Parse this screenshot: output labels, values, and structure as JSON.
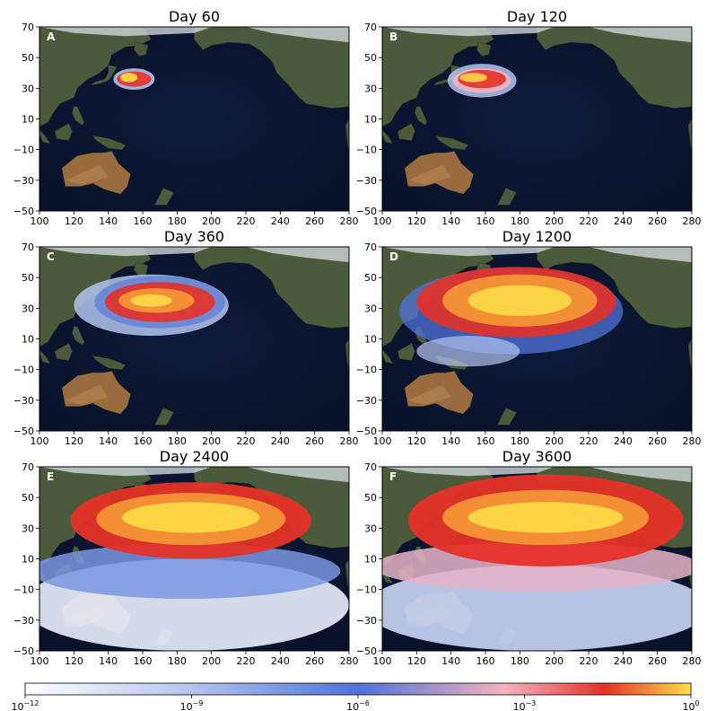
{
  "panels": [
    {
      "letter": "A",
      "title": "Day 60",
      "stage": 0
    },
    {
      "letter": "B",
      "title": "Day 120",
      "stage": 1
    },
    {
      "letter": "C",
      "title": "Day 360",
      "stage": 2
    },
    {
      "letter": "D",
      "title": "Day 1200",
      "stage": 3
    },
    {
      "letter": "E",
      "title": "Day 2400",
      "stage": 4
    },
    {
      "letter": "F",
      "title": "Day 3600",
      "stage": 5
    }
  ],
  "axes": {
    "x_ticks": [
      "100",
      "120",
      "140",
      "160",
      "180",
      "200",
      "220",
      "240",
      "260",
      "280"
    ],
    "y_ticks": [
      "70",
      "50",
      "30",
      "10",
      "−10",
      "−30",
      "−50"
    ],
    "xlim": [
      100,
      280
    ],
    "ylim": [
      -50,
      70
    ]
  },
  "colorbar": {
    "scale": "log",
    "labels": [
      {
        "base": "10",
        "exp": "−12"
      },
      {
        "base": "10",
        "exp": "−9"
      },
      {
        "base": "10",
        "exp": "−6"
      },
      {
        "base": "10",
        "exp": "−3"
      },
      {
        "base": "10",
        "exp": "0"
      }
    ],
    "colors": [
      "#ffffff",
      "#b3c4ef",
      "#4f73d9",
      "#f2b3c3",
      "#e53228",
      "#fde048"
    ]
  },
  "colors": {
    "ocean": "#0c1733",
    "land": "#4a5a3a",
    "desert": "#9a6b3f",
    "ice": "#cfd6dc"
  }
}
